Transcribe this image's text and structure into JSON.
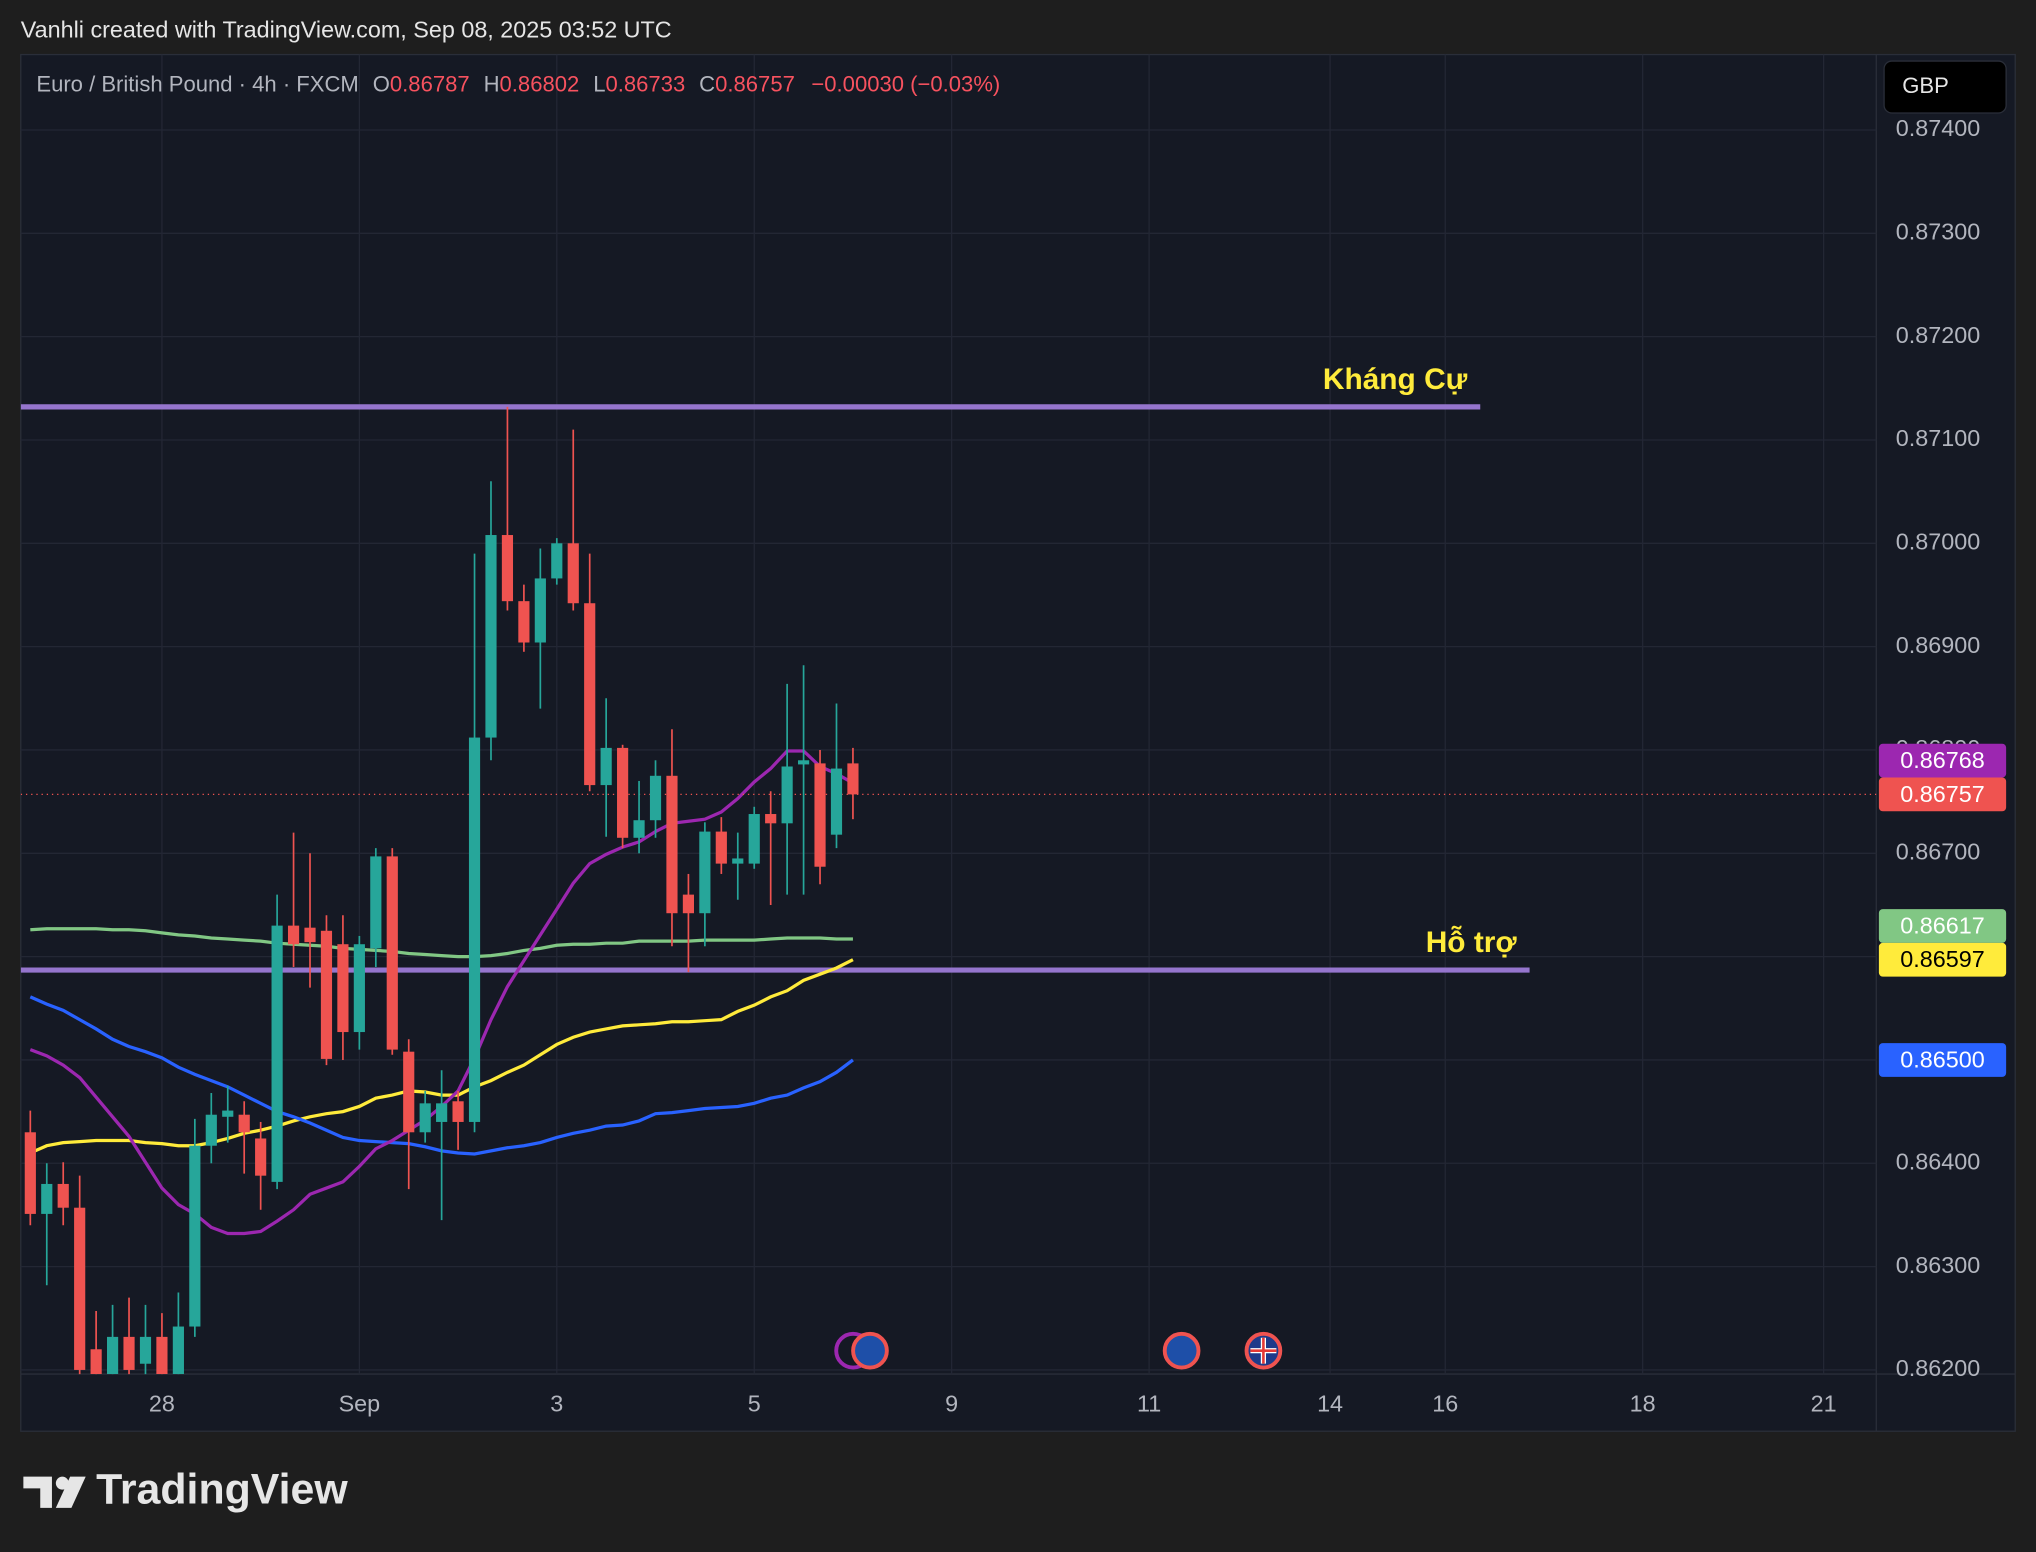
{
  "watermark": "Vanhli created with TradingView.com, Sep 08, 2025 03:52 UTC",
  "brand": "TradingView",
  "currency_button": "GBP",
  "legend": {
    "symbol": "Euro / British Pound · 4h · FXCM",
    "o_key": "O",
    "open": "0.86787",
    "h_key": "H",
    "high": "0.86802",
    "l_key": "L",
    "low": "0.86733",
    "c_key": "C",
    "close": "0.86757",
    "change": "−0.00030 (−0.03%)",
    "color": "#f7525f"
  },
  "chart_data": {
    "type": "candlestick",
    "xlim": [
      -0.58,
      112.2
    ],
    "xticks": [
      {
        "value": 8,
        "label": "28"
      },
      {
        "value": 20,
        "label": "Sep"
      },
      {
        "value": 32,
        "label": "3"
      },
      {
        "value": 44,
        "label": "5"
      },
      {
        "value": 56,
        "label": "9"
      },
      {
        "value": 68,
        "label": "11"
      },
      {
        "value": 79,
        "label": "14"
      },
      {
        "value": 86,
        "label": "16"
      },
      {
        "value": 98,
        "label": "18"
      },
      {
        "value": 109,
        "label": "21"
      }
    ],
    "ylim": [
      0.86196,
      0.87473
    ],
    "yticks": [
      {
        "value": 0.874,
        "label": "0.87400"
      },
      {
        "value": 0.873,
        "label": "0.87300"
      },
      {
        "value": 0.872,
        "label": "0.87200"
      },
      {
        "value": 0.871,
        "label": "0.87100"
      },
      {
        "value": 0.87,
        "label": "0.87000"
      },
      {
        "value": 0.869,
        "label": "0.86900"
      },
      {
        "value": 0.868,
        "label": "0.86800"
      },
      {
        "value": 0.867,
        "label": "0.86700"
      },
      {
        "value": 0.866,
        "label": "0.86600"
      },
      {
        "value": 0.865,
        "label": "0.86500"
      },
      {
        "value": 0.864,
        "label": "0.86400"
      },
      {
        "value": 0.863,
        "label": "0.86300"
      },
      {
        "value": 0.862,
        "label": "0.86200"
      }
    ],
    "grid": true,
    "up_color": "#26a69a",
    "down_color": "#ef5350",
    "open": [
      0.8643,
      0.86351,
      0.8638,
      0.86357,
      0.8622,
      0.86196,
      0.86232,
      0.86206,
      0.86232,
      0.86196,
      0.86242,
      0.86417,
      0.86445,
      0.86447,
      0.86424,
      0.86382,
      0.8663,
      0.86628,
      0.86625,
      0.86612,
      0.86527,
      0.86608,
      0.86697,
      0.86508,
      0.8643,
      0.8644,
      0.8646,
      0.8644,
      0.86812,
      0.87008,
      0.86944,
      0.86904,
      0.86966,
      0.87,
      0.86942,
      0.86766,
      0.86802,
      0.86715,
      0.86732,
      0.86775,
      0.8666,
      0.86642,
      0.86721,
      0.8669,
      0.8669,
      0.86738,
      0.86729,
      0.86786,
      0.86787,
      0.86718,
      0.86787
    ],
    "high": [
      0.86451,
      0.864,
      0.86401,
      0.86388,
      0.86257,
      0.86263,
      0.8627,
      0.86263,
      0.86255,
      0.86275,
      0.86443,
      0.86468,
      0.86475,
      0.8646,
      0.8644,
      0.8666,
      0.8672,
      0.867,
      0.8664,
      0.8664,
      0.8662,
      0.86705,
      0.86705,
      0.8652,
      0.8647,
      0.8649,
      0.8647,
      0.8699,
      0.8706,
      0.87132,
      0.8696,
      0.86995,
      0.87005,
      0.8711,
      0.8699,
      0.8685,
      0.86805,
      0.8677,
      0.8679,
      0.8682,
      0.8668,
      0.8673,
      0.86735,
      0.8672,
      0.86745,
      0.8676,
      0.86864,
      0.86882,
      0.868,
      0.86845,
      0.86802
    ],
    "low": [
      0.8634,
      0.86282,
      0.8634,
      0.8619,
      0.8618,
      0.8619,
      0.8619,
      0.86195,
      0.86185,
      0.86185,
      0.86232,
      0.864,
      0.8642,
      0.8639,
      0.86355,
      0.86375,
      0.8659,
      0.8657,
      0.86495,
      0.865,
      0.8651,
      0.8659,
      0.86505,
      0.86375,
      0.8642,
      0.86345,
      0.86413,
      0.8643,
      0.8679,
      0.86935,
      0.86895,
      0.8684,
      0.8696,
      0.86935,
      0.8676,
      0.86716,
      0.86705,
      0.867,
      0.86715,
      0.8661,
      0.86585,
      0.8661,
      0.8668,
      0.86655,
      0.86685,
      0.8665,
      0.8666,
      0.8666,
      0.8667,
      0.86705,
      0.86733
    ],
    "close": [
      0.86351,
      0.8638,
      0.86357,
      0.862,
      0.86196,
      0.86232,
      0.862,
      0.86232,
      0.86196,
      0.86242,
      0.86417,
      0.86447,
      0.86451,
      0.8643,
      0.86388,
      0.8663,
      0.86612,
      0.86614,
      0.86501,
      0.86527,
      0.86612,
      0.86697,
      0.8651,
      0.8643,
      0.86458,
      0.86458,
      0.8644,
      0.86812,
      0.87008,
      0.86944,
      0.86904,
      0.86966,
      0.87,
      0.86942,
      0.86766,
      0.86802,
      0.86715,
      0.86732,
      0.86775,
      0.86642,
      0.86642,
      0.86721,
      0.8669,
      0.86695,
      0.86738,
      0.86729,
      0.86784,
      0.8679,
      0.86687,
      0.86782,
      0.86757
    ],
    "series": [
      {
        "color": "#81c784",
        "values": [
          0.86626,
          0.86627,
          0.86627,
          0.86627,
          0.86627,
          0.86626,
          0.86626,
          0.86625,
          0.86623,
          0.86621,
          0.8662,
          0.86618,
          0.86617,
          0.86616,
          0.86615,
          0.86613,
          0.86612,
          0.86611,
          0.8661,
          0.86608,
          0.86607,
          0.86606,
          0.86605,
          0.86603,
          0.86602,
          0.86601,
          0.866,
          0.866,
          0.86601,
          0.86603,
          0.86606,
          0.86608,
          0.86611,
          0.86612,
          0.86612,
          0.86613,
          0.86613,
          0.86615,
          0.86615,
          0.86615,
          0.86615,
          0.86616,
          0.86616,
          0.86616,
          0.86616,
          0.86617,
          0.86618,
          0.86618,
          0.86618,
          0.86617,
          0.86617
        ]
      },
      {
        "color": "#ffeb3b",
        "values": [
          0.8641,
          0.86417,
          0.8642,
          0.86421,
          0.86422,
          0.86422,
          0.86422,
          0.8642,
          0.86419,
          0.86417,
          0.86417,
          0.8642,
          0.86424,
          0.86429,
          0.86432,
          0.86436,
          0.86441,
          0.86445,
          0.86448,
          0.8645,
          0.86455,
          0.86463,
          0.86466,
          0.8647,
          0.86469,
          0.86466,
          0.86466,
          0.86474,
          0.8648,
          0.86488,
          0.86495,
          0.86505,
          0.86515,
          0.86522,
          0.86527,
          0.8653,
          0.86533,
          0.86534,
          0.86535,
          0.86537,
          0.86537,
          0.86538,
          0.86539,
          0.86547,
          0.86553,
          0.86561,
          0.86567,
          0.86577,
          0.86583,
          0.86589,
          0.86597
        ]
      },
      {
        "color": "#2962ff",
        "values": [
          0.86561,
          0.86554,
          0.86548,
          0.86539,
          0.8653,
          0.8652,
          0.86513,
          0.86508,
          0.86502,
          0.86493,
          0.86486,
          0.8648,
          0.86474,
          0.86466,
          0.86458,
          0.8645,
          0.86445,
          0.86439,
          0.86432,
          0.86425,
          0.86422,
          0.86421,
          0.8642,
          0.86419,
          0.86416,
          0.86412,
          0.8641,
          0.86409,
          0.86412,
          0.86415,
          0.86417,
          0.8642,
          0.86425,
          0.86429,
          0.86432,
          0.86436,
          0.86437,
          0.86441,
          0.86448,
          0.86449,
          0.86451,
          0.86453,
          0.86454,
          0.86455,
          0.86458,
          0.86463,
          0.86466,
          0.86473,
          0.86479,
          0.86488,
          0.865
        ]
      },
      {
        "color": "#9c27b0",
        "values": [
          0.8651,
          0.86504,
          0.86495,
          0.86483,
          0.86464,
          0.86445,
          0.86426,
          0.86401,
          0.86376,
          0.8636,
          0.86351,
          0.86338,
          0.86332,
          0.86332,
          0.86334,
          0.86344,
          0.86355,
          0.8637,
          0.86376,
          0.86382,
          0.86397,
          0.86414,
          0.86422,
          0.86432,
          0.86442,
          0.86455,
          0.8647,
          0.86502,
          0.86539,
          0.86571,
          0.86596,
          0.86621,
          0.86646,
          0.86671,
          0.8669,
          0.86699,
          0.86706,
          0.86711,
          0.86721,
          0.86729,
          0.86731,
          0.86733,
          0.8674,
          0.86753,
          0.86769,
          0.86782,
          0.86799,
          0.86799,
          0.86784,
          0.86777,
          0.86768
        ]
      }
    ],
    "last_price_line": {
      "value": 0.86757,
      "color": "#ef5350"
    },
    "price_labels": [
      {
        "value": 0.86768,
        "label": "0.86768",
        "color": "#9c27b0"
      },
      {
        "value": 0.86757,
        "label": "0.86757",
        "color": "#ef5350"
      },
      {
        "value": 0.86617,
        "label": "0.86617",
        "color": "#81c784"
      },
      {
        "value": 0.86597,
        "label": "0.86597",
        "color": "#ffeb3b"
      },
      {
        "value": 0.865,
        "label": "0.86500",
        "color": "#2962ff"
      }
    ],
    "levels": [
      {
        "value": 0.87132,
        "label": "Kháng Cự",
        "color": "#9575cd",
        "text_color": "#ffeb3b"
      },
      {
        "value": 0.86587,
        "label": "Hỗ trợ",
        "color": "#9575cd",
        "text_color": "#ffeb3b"
      }
    ]
  }
}
